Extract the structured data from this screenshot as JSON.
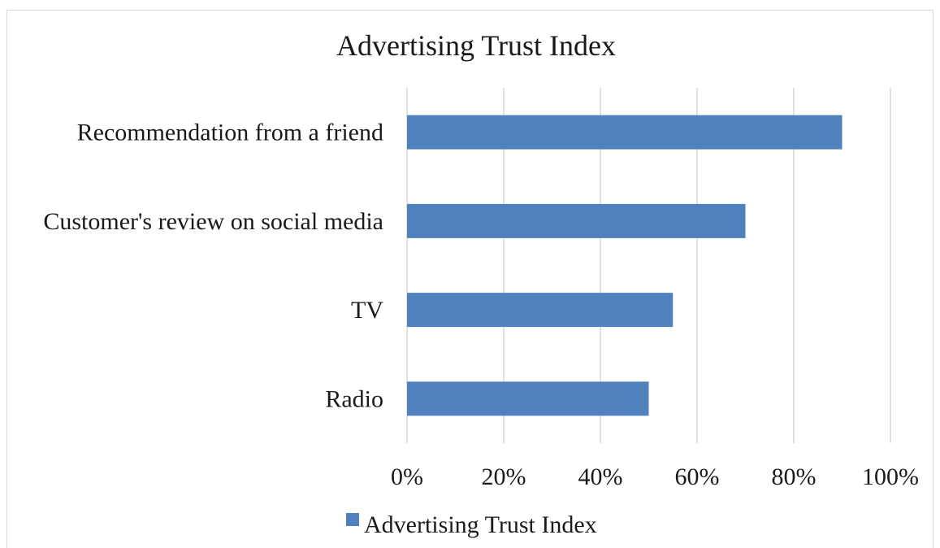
{
  "chart_data": {
    "type": "bar",
    "orientation": "horizontal",
    "title": "Advertising Trust Index",
    "categories": [
      "Recommendation from a friend",
      "Customer's review on social media",
      "TV",
      "Radio"
    ],
    "series": [
      {
        "name": "Advertising Trust Index",
        "values": [
          0.9,
          0.7,
          0.55,
          0.5
        ]
      }
    ],
    "xlim": [
      0,
      1
    ],
    "xticks": [
      0,
      0.2,
      0.4,
      0.6,
      0.8,
      1.0
    ],
    "xtick_labels": [
      "0%",
      "20%",
      "40%",
      "60%",
      "80%",
      "100%"
    ],
    "grid": "vertical",
    "legend": "bottom",
    "colors": {
      "bar": "#4f81bd",
      "grid": "#d9d9d9"
    }
  }
}
